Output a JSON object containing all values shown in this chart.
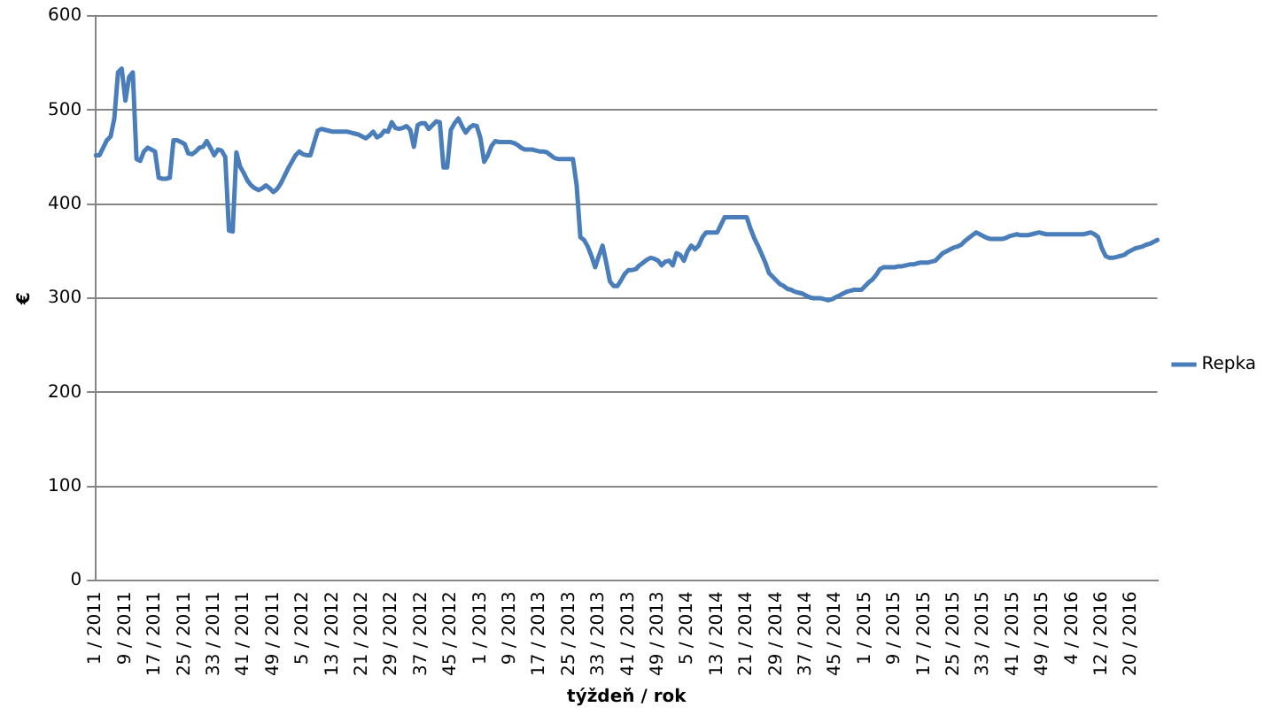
{
  "chart_data": {
    "type": "line",
    "xlabel": "týždeň / rok",
    "ylabel": "€",
    "categories": [
      "1 / 2011",
      null,
      null,
      null,
      null,
      null,
      null,
      null,
      "9 / 2011",
      null,
      null,
      null,
      null,
      null,
      null,
      null,
      "17 / 2011",
      null,
      null,
      null,
      null,
      null,
      null,
      null,
      "25 / 2011",
      null,
      null,
      null,
      null,
      null,
      null,
      null,
      "33 / 2011",
      null,
      null,
      null,
      null,
      null,
      null,
      null,
      "41 / 2011",
      null,
      null,
      null,
      null,
      null,
      null,
      null,
      "49 / 2011",
      null,
      null,
      null,
      null,
      null,
      null,
      null,
      "5 / 2012",
      null,
      null,
      null,
      null,
      null,
      null,
      null,
      "13 / 2012",
      null,
      null,
      null,
      null,
      null,
      null,
      null,
      "21 / 2012",
      null,
      null,
      null,
      null,
      null,
      null,
      null,
      "29 / 2012",
      null,
      null,
      null,
      null,
      null,
      null,
      null,
      "37 / 2012",
      null,
      null,
      null,
      null,
      null,
      null,
      null,
      "45 / 2012",
      null,
      null,
      null,
      null,
      null,
      null,
      null,
      "1 / 2013",
      null,
      null,
      null,
      null,
      null,
      null,
      null,
      "9 / 2013",
      null,
      null,
      null,
      null,
      null,
      null,
      null,
      "17 / 2013",
      null,
      null,
      null,
      null,
      null,
      null,
      null,
      "25 / 2013",
      null,
      null,
      null,
      null,
      null,
      null,
      null,
      "33 / 2013",
      null,
      null,
      null,
      null,
      null,
      null,
      null,
      "41 / 2013",
      null,
      null,
      null,
      null,
      null,
      null,
      null,
      "49 / 2013",
      null,
      null,
      null,
      null,
      null,
      null,
      null,
      "5 / 2014",
      null,
      null,
      null,
      null,
      null,
      null,
      null,
      "13 / 2014",
      null,
      null,
      null,
      null,
      null,
      null,
      null,
      "21 / 2014",
      null,
      null,
      null,
      null,
      null,
      null,
      null,
      "29 / 2014",
      null,
      null,
      null,
      null,
      null,
      null,
      null,
      "37 / 2014",
      null,
      null,
      null,
      null,
      null,
      null,
      null,
      "45 / 2014",
      null,
      null,
      null,
      null,
      null,
      null,
      null,
      "1 / 2015",
      null,
      null,
      null,
      null,
      null,
      null,
      null,
      "9 / 2015",
      null,
      null,
      null,
      null,
      null,
      null,
      null,
      "17 / 2015",
      null,
      null,
      null,
      null,
      null,
      null,
      null,
      "25 / 2015",
      null,
      null,
      null,
      null,
      null,
      null,
      null,
      "33 / 2015",
      null,
      null,
      null,
      null,
      null,
      null,
      null,
      "41 / 2015",
      null,
      null,
      null,
      null,
      null,
      null,
      null,
      "49 / 2015",
      null,
      null,
      null,
      null,
      null,
      null,
      null,
      "4 / 2016",
      null,
      null,
      null,
      null,
      null,
      null,
      null,
      "12 / 2016",
      null,
      null,
      null,
      null,
      null,
      null,
      null,
      "20 / 2016",
      null,
      null,
      null,
      null,
      null,
      null,
      null
    ],
    "series": [
      {
        "name": "Repka",
        "color": "#4a7ebb",
        "values": [
          452,
          452,
          460,
          468,
          472,
          491,
          540,
          544,
          510,
          535,
          540,
          448,
          446,
          456,
          460,
          458,
          456,
          428,
          427,
          427,
          428,
          468,
          468,
          466,
          464,
          454,
          453,
          456,
          460,
          461,
          467,
          460,
          452,
          458,
          457,
          450,
          372,
          371,
          455,
          440,
          433,
          425,
          420,
          417,
          415,
          417,
          420,
          417,
          413,
          416,
          422,
          430,
          438,
          445,
          452,
          456,
          453,
          452,
          452,
          465,
          478,
          480,
          479,
          478,
          477,
          477,
          477,
          477,
          477,
          476,
          475,
          474,
          472,
          470,
          473,
          477,
          471,
          473,
          478,
          477,
          487,
          481,
          480,
          481,
          483,
          479,
          461,
          484,
          486,
          486,
          480,
          484,
          488,
          487,
          439,
          439,
          479,
          486,
          491,
          483,
          476,
          481,
          484,
          483,
          470,
          445,
          452,
          462,
          467,
          466,
          466,
          466,
          466,
          465,
          463,
          460,
          458,
          458,
          458,
          457,
          456,
          456,
          455,
          452,
          449,
          448,
          448,
          448,
          448,
          448,
          420,
          365,
          362,
          355,
          345,
          333,
          345,
          356,
          338,
          318,
          313,
          313,
          319,
          326,
          330,
          330,
          331,
          335,
          338,
          341,
          343,
          342,
          340,
          335,
          339,
          340,
          335,
          348,
          346,
          340,
          350,
          356,
          352,
          356,
          365,
          370,
          370,
          370,
          370,
          378,
          386,
          386,
          386,
          386,
          386,
          386,
          386,
          374,
          364,
          356,
          347,
          338,
          327,
          323,
          319,
          315,
          313,
          310,
          309,
          307,
          306,
          305,
          303,
          301,
          300,
          300,
          300,
          299,
          298,
          299,
          301,
          303,
          305,
          307,
          308,
          309,
          309,
          309,
          313,
          317,
          320,
          325,
          331,
          333,
          333,
          333,
          333,
          334,
          334,
          335,
          336,
          336,
          337,
          338,
          338,
          338,
          339,
          340,
          344,
          348,
          350,
          352,
          354,
          355,
          357,
          361,
          364,
          367,
          370,
          368,
          366,
          364,
          363,
          363,
          363,
          363,
          364,
          366,
          367,
          368,
          367,
          367,
          367,
          368,
          369,
          370,
          369,
          368,
          368,
          368,
          368,
          368,
          368,
          368,
          368,
          368,
          368,
          368,
          369,
          370,
          368,
          365,
          353,
          345,
          343,
          343,
          344,
          345,
          346,
          349,
          351,
          353,
          354,
          355,
          357,
          358,
          360,
          362
        ]
      }
    ],
    "ylim": [
      0,
      600
    ],
    "yticks": [
      0,
      100,
      200,
      300,
      400,
      500,
      600
    ],
    "grid": "y",
    "legend": "right",
    "marker": "none",
    "line_style": "solid"
  }
}
